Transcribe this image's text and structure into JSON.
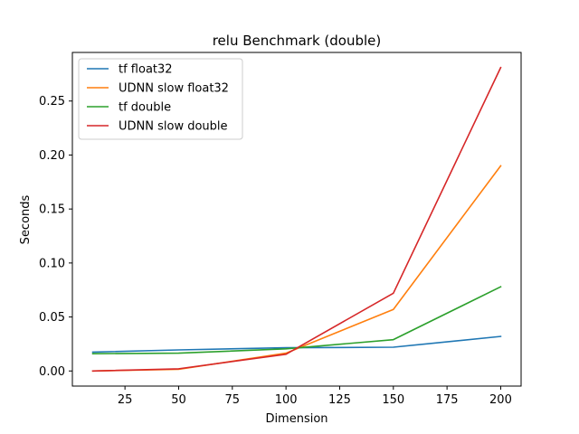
{
  "chart_data": {
    "type": "line",
    "title": "relu Benchmark (double)",
    "xlabel": "Dimension",
    "ylabel": "Seconds",
    "xlim": [
      0.5,
      209.5
    ],
    "ylim": [
      -0.014,
      0.295
    ],
    "xticks": [
      25,
      50,
      75,
      100,
      125,
      150,
      175,
      200
    ],
    "yticks": [
      0.0,
      0.05,
      0.1,
      0.15,
      0.2,
      0.25
    ],
    "ytick_labels": [
      "0.00",
      "0.05",
      "0.10",
      "0.15",
      "0.20",
      "0.25"
    ],
    "x": [
      10,
      50,
      100,
      150,
      200
    ],
    "legend_position": "upper-left",
    "grid": false,
    "series": [
      {
        "name": "tf float32",
        "color": "#1f77b4",
        "values": [
          0.0175,
          0.0195,
          0.0215,
          0.022,
          0.032
        ]
      },
      {
        "name": "UDNN slow float32",
        "color": "#ff7f0e",
        "values": [
          0.0,
          0.0015,
          0.0165,
          0.057,
          0.19
        ]
      },
      {
        "name": "tf double",
        "color": "#2ca02c",
        "values": [
          0.016,
          0.0165,
          0.0205,
          0.029,
          0.078
        ]
      },
      {
        "name": "UDNN slow double",
        "color": "#d62728",
        "values": [
          0.0,
          0.002,
          0.0155,
          0.072,
          0.281
        ]
      }
    ]
  }
}
